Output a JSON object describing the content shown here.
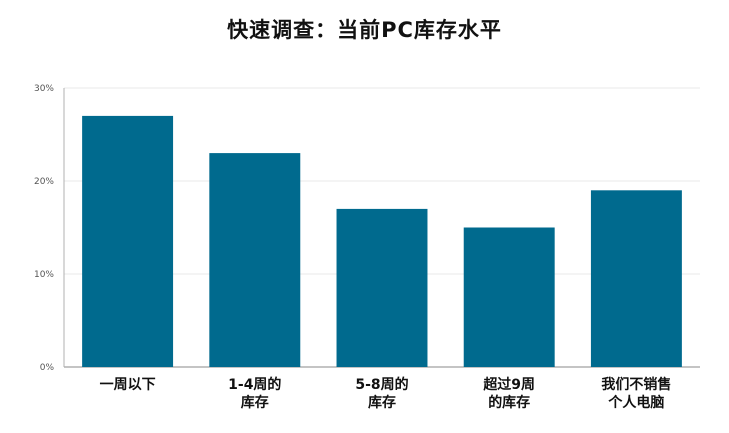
{
  "chart_data": {
    "type": "bar",
    "title": "快速调查：当前PC库存水平",
    "categories": [
      [
        "一周以下"
      ],
      [
        "1-4周的",
        "库存"
      ],
      [
        "5-8周的",
        "库存"
      ],
      [
        "超过9周",
        "的库存"
      ],
      [
        "我们不销售",
        "个人电脑"
      ]
    ],
    "values": [
      27,
      23,
      17,
      15,
      19
    ],
    "ylim": [
      0,
      30
    ],
    "yticks": [
      0,
      10,
      20,
      30
    ],
    "ytick_labels": [
      "0%",
      "10%",
      "20%",
      "30%"
    ],
    "xlabel": "",
    "ylabel": "",
    "grid": true,
    "bar_color": "#006a8e",
    "grid_color": "#e8e8e8",
    "axis_color": "#b0b0b0"
  }
}
